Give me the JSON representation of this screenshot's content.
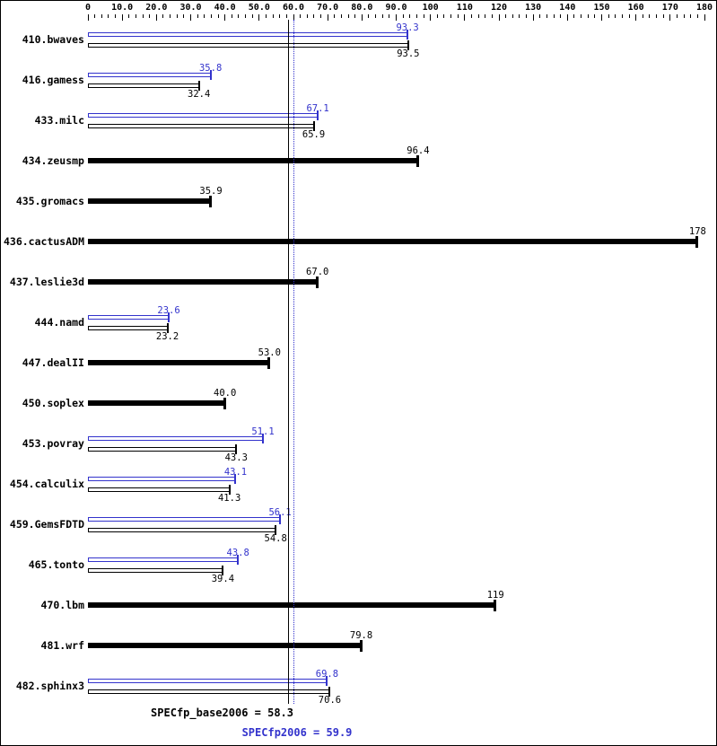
{
  "chart_data": {
    "type": "bar",
    "orientation": "horizontal",
    "title": "",
    "axis": {
      "min": 0,
      "max": 180,
      "major_tick_step": 10,
      "minor_tick_step": 2,
      "position": "top",
      "tick_labels": [
        "0",
        "10.0",
        "20.0",
        "30.0",
        "40.0",
        "50.0",
        "60.0",
        "70.0",
        "80.0",
        "90.0",
        "100",
        "110",
        "120",
        "130",
        "140",
        "150",
        "160",
        "170",
        "180"
      ]
    },
    "series_colors": {
      "peak": "#3333cc",
      "base": "#000000"
    },
    "benchmarks": [
      {
        "name": "410.bwaves",
        "peak": 93.3,
        "peak_label": "93.3",
        "base": 93.5,
        "base_label": "93.5"
      },
      {
        "name": "416.gamess",
        "peak": 35.8,
        "peak_label": "35.8",
        "base": 32.4,
        "base_label": "32.4"
      },
      {
        "name": "433.milc",
        "peak": 67.1,
        "peak_label": "67.1",
        "base": 65.9,
        "base_label": "65.9"
      },
      {
        "name": "434.zeusmp",
        "peak": null,
        "peak_label": null,
        "base": 96.4,
        "base_label": "96.4"
      },
      {
        "name": "435.gromacs",
        "peak": null,
        "peak_label": null,
        "base": 35.9,
        "base_label": "35.9"
      },
      {
        "name": "436.cactusADM",
        "peak": null,
        "peak_label": null,
        "base": 178,
        "base_label": "178"
      },
      {
        "name": "437.leslie3d",
        "peak": null,
        "peak_label": null,
        "base": 67.0,
        "base_label": "67.0"
      },
      {
        "name": "444.namd",
        "peak": 23.6,
        "peak_label": "23.6",
        "base": 23.2,
        "base_label": "23.2"
      },
      {
        "name": "447.dealII",
        "peak": null,
        "peak_label": null,
        "base": 53.0,
        "base_label": "53.0"
      },
      {
        "name": "450.soplex",
        "peak": null,
        "peak_label": null,
        "base": 40.0,
        "base_label": "40.0"
      },
      {
        "name": "453.povray",
        "peak": 51.1,
        "peak_label": "51.1",
        "base": 43.3,
        "base_label": "43.3"
      },
      {
        "name": "454.calculix",
        "peak": 43.1,
        "peak_label": "43.1",
        "base": 41.3,
        "base_label": "41.3"
      },
      {
        "name": "459.GemsFDTD",
        "peak": 56.1,
        "peak_label": "56.1",
        "base": 54.8,
        "base_label": "54.8"
      },
      {
        "name": "465.tonto",
        "peak": 43.8,
        "peak_label": "43.8",
        "base": 39.4,
        "base_label": "39.4"
      },
      {
        "name": "470.lbm",
        "peak": null,
        "peak_label": null,
        "base": 119,
        "base_label": "119"
      },
      {
        "name": "481.wrf",
        "peak": null,
        "peak_label": null,
        "base": 79.8,
        "base_label": "79.8"
      },
      {
        "name": "482.sphinx3",
        "peak": 69.8,
        "peak_label": "69.8",
        "base": 70.6,
        "base_label": "70.6"
      }
    ],
    "reference_lines": [
      {
        "label": "SPECfp_base2006 = 58.3",
        "value": 58.3,
        "style": "solid",
        "color": "#000000"
      },
      {
        "label": "SPECfp2006 = 59.9",
        "value": 59.9,
        "style": "dotted",
        "color": "#3333cc"
      }
    ]
  }
}
